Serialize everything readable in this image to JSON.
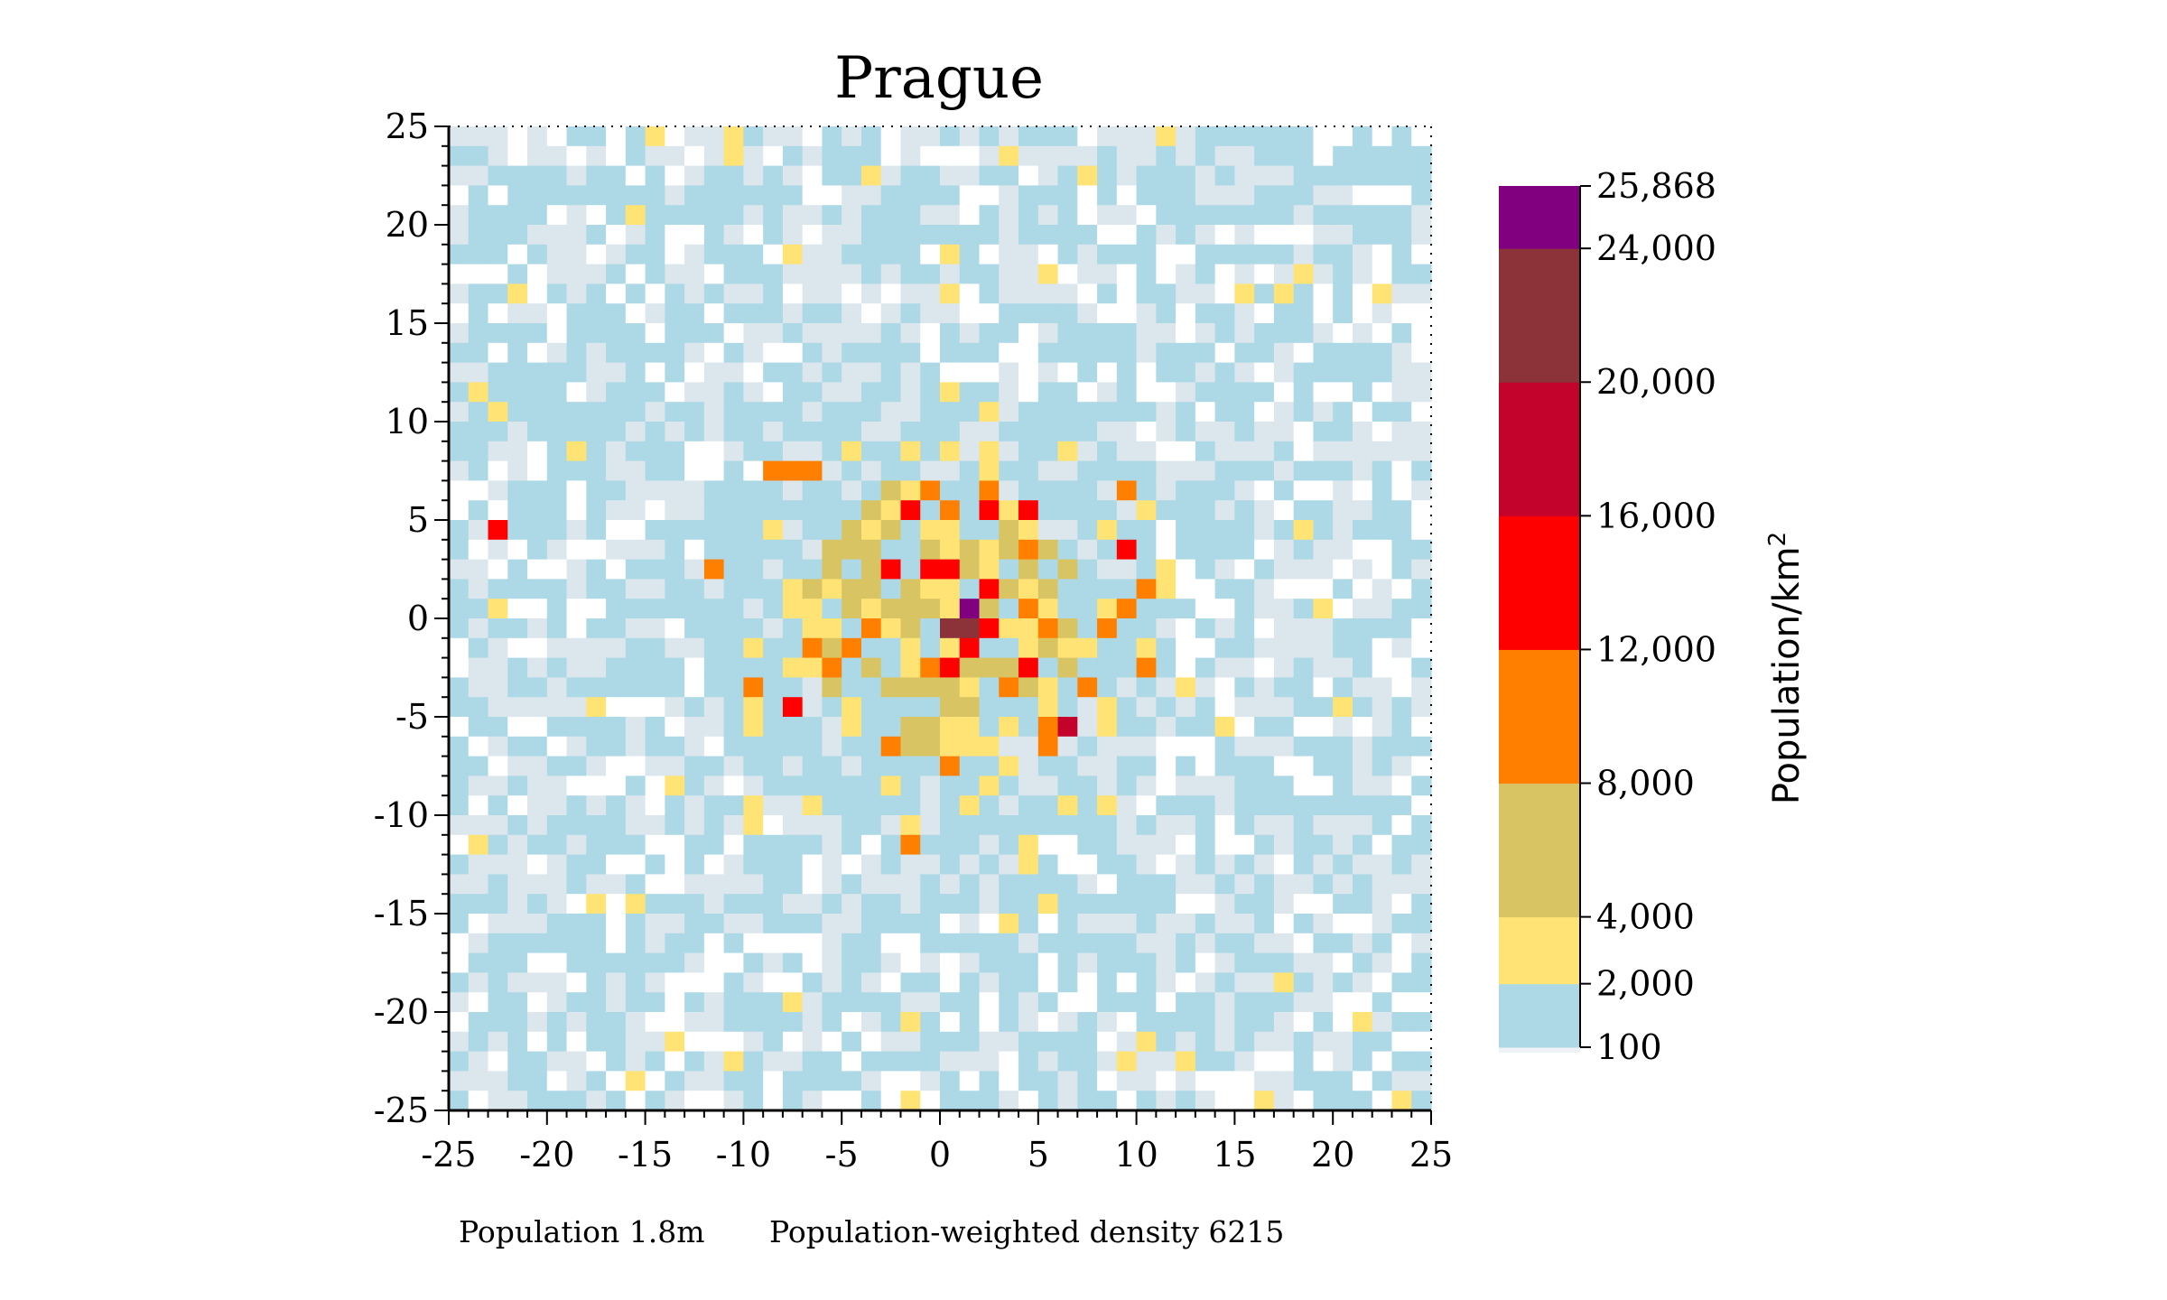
{
  "chart_data": {
    "type": "heatmap",
    "title": "Prague",
    "xlabel": "",
    "ylabel": "",
    "xlim": [
      -25,
      25
    ],
    "ylim": [
      -25,
      25
    ],
    "x_ticks": [
      -25,
      -20,
      -15,
      -10,
      -5,
      0,
      5,
      10,
      15,
      20,
      25
    ],
    "y_ticks": [
      25,
      20,
      15,
      10,
      5,
      0,
      -5,
      -10,
      -15,
      -20,
      -25
    ],
    "grid_size_km": 1,
    "colorbar": {
      "label": "Population/km",
      "label_superscript": "2",
      "boundaries": [
        100,
        2000,
        4000,
        8000,
        12000,
        16000,
        20000,
        24000,
        25868
      ],
      "tick_labels": [
        "25,868",
        "24,000",
        "20,000",
        "16,000",
        "12,000",
        "8,000",
        "4,000",
        "2,000",
        "100"
      ],
      "bands": [
        {
          "min": 0,
          "max": 100,
          "color": "#ffffff"
        },
        {
          "min": 100,
          "max": 2000,
          "color": "#add8e6"
        },
        {
          "min": 2000,
          "max": 4000,
          "color": "#ffe375"
        },
        {
          "min": 4000,
          "max": 8000,
          "color": "#d9c463"
        },
        {
          "min": 8000,
          "max": 12000,
          "color": "#ff8000"
        },
        {
          "min": 12000,
          "max": 16000,
          "color": "#ff0000"
        },
        {
          "min": 16000,
          "max": 20000,
          "color": "#c4032d"
        },
        {
          "min": 20000,
          "max": 24000,
          "color": "#8b3339"
        },
        {
          "min": 24000,
          "max": 25868,
          "color": "#800080"
        }
      ]
    },
    "background_cells": {
      "low": "#dbe6ed",
      "mid": "#add8e6",
      "empty": "#ffffff"
    },
    "dense_cells": [
      {
        "x": 1,
        "y": 0,
        "level": "max"
      },
      {
        "x": 0,
        "y": -1,
        "level": "20000-24000"
      },
      {
        "x": 1,
        "y": -1,
        "level": "20000-24000"
      },
      {
        "x": 6,
        "y": -6,
        "level": "16000-20000"
      },
      {
        "x": -23,
        "y": 4,
        "level": "12000-16000"
      },
      {
        "x": -2,
        "y": 5,
        "level": "12000-16000"
      },
      {
        "x": 2,
        "y": 5,
        "level": "12000-16000"
      },
      {
        "x": 4,
        "y": 5,
        "level": "12000-16000"
      },
      {
        "x": -3,
        "y": 2,
        "level": "12000-16000"
      },
      {
        "x": -1,
        "y": 2,
        "level": "12000-16000"
      },
      {
        "x": 0,
        "y": 2,
        "level": "12000-16000"
      },
      {
        "x": 2,
        "y": 1,
        "level": "12000-16000"
      },
      {
        "x": 2,
        "y": -1,
        "level": "12000-16000"
      },
      {
        "x": 1,
        "y": -2,
        "level": "12000-16000"
      },
      {
        "x": 0,
        "y": -3,
        "level": "12000-16000"
      },
      {
        "x": -8,
        "y": -5,
        "level": "12000-16000"
      },
      {
        "x": 4,
        "y": -3,
        "level": "12000-16000"
      },
      {
        "x": 9,
        "y": 3,
        "level": "12000-16000"
      }
    ]
  },
  "footer": {
    "population": "Population 1.8m",
    "weighted_density": "Population-weighted density 6215"
  }
}
